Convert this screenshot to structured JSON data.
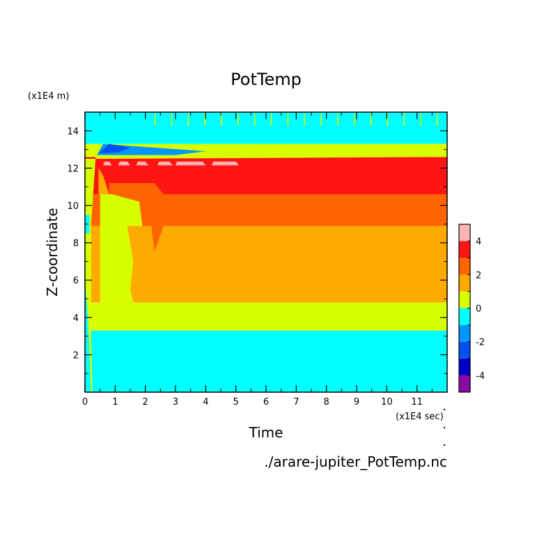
{
  "chart_data": {
    "type": "heatmap",
    "title": "PotTemp",
    "xlabel": "Time",
    "ylabel": "Z-coordinate",
    "x_unit_label": "(x1E4 sec)",
    "y_unit_label": "(x1E4 m)",
    "source_label": "./arare-jupiter_PotTemp.nc",
    "xlim": [
      0,
      12
    ],
    "ylim": [
      0,
      15
    ],
    "x_ticks": [
      0,
      1,
      2,
      3,
      4,
      5,
      6,
      7,
      8,
      9,
      10,
      11
    ],
    "y_ticks": [
      2,
      4,
      6,
      8,
      10,
      12,
      14
    ],
    "colorbar": {
      "levels": [
        -5,
        -4,
        -3,
        -2,
        -1,
        0,
        1,
        2,
        3,
        4,
        5
      ],
      "tick_labels": [
        -4,
        -2,
        0,
        2,
        4
      ],
      "colors": [
        "#8b0aa5",
        "#0000c8",
        "#0050f0",
        "#0096ff",
        "#00ffff",
        "#d7ff00",
        "#ffaa00",
        "#ff6400",
        "#ff1414",
        "#ffb4b4"
      ]
    },
    "bands": [
      {
        "range": [
          -1,
          0
        ],
        "z_from": 0.0,
        "z_to": 3.3,
        "color": "#00ffff"
      },
      {
        "range": [
          0,
          1
        ],
        "z_from": 3.3,
        "z_to": 4.8,
        "color": "#d7ff00"
      },
      {
        "range": [
          1,
          2
        ],
        "z_from": 4.8,
        "z_to": 8.9,
        "color": "#ffaa00"
      },
      {
        "range": [
          2,
          3
        ],
        "z_from": 8.9,
        "z_to": 10.6,
        "color": "#ff6400"
      },
      {
        "range": [
          3,
          4
        ],
        "z_from": 10.6,
        "z_to": 12.6,
        "color": "#ff1414"
      },
      {
        "range": [
          0,
          1
        ],
        "z_from": 12.6,
        "z_to": 13.3,
        "color": "#d7ff00"
      },
      {
        "range": [
          -1,
          0
        ],
        "z_from": 13.3,
        "z_to": 15.0,
        "color": "#00ffff"
      }
    ]
  }
}
